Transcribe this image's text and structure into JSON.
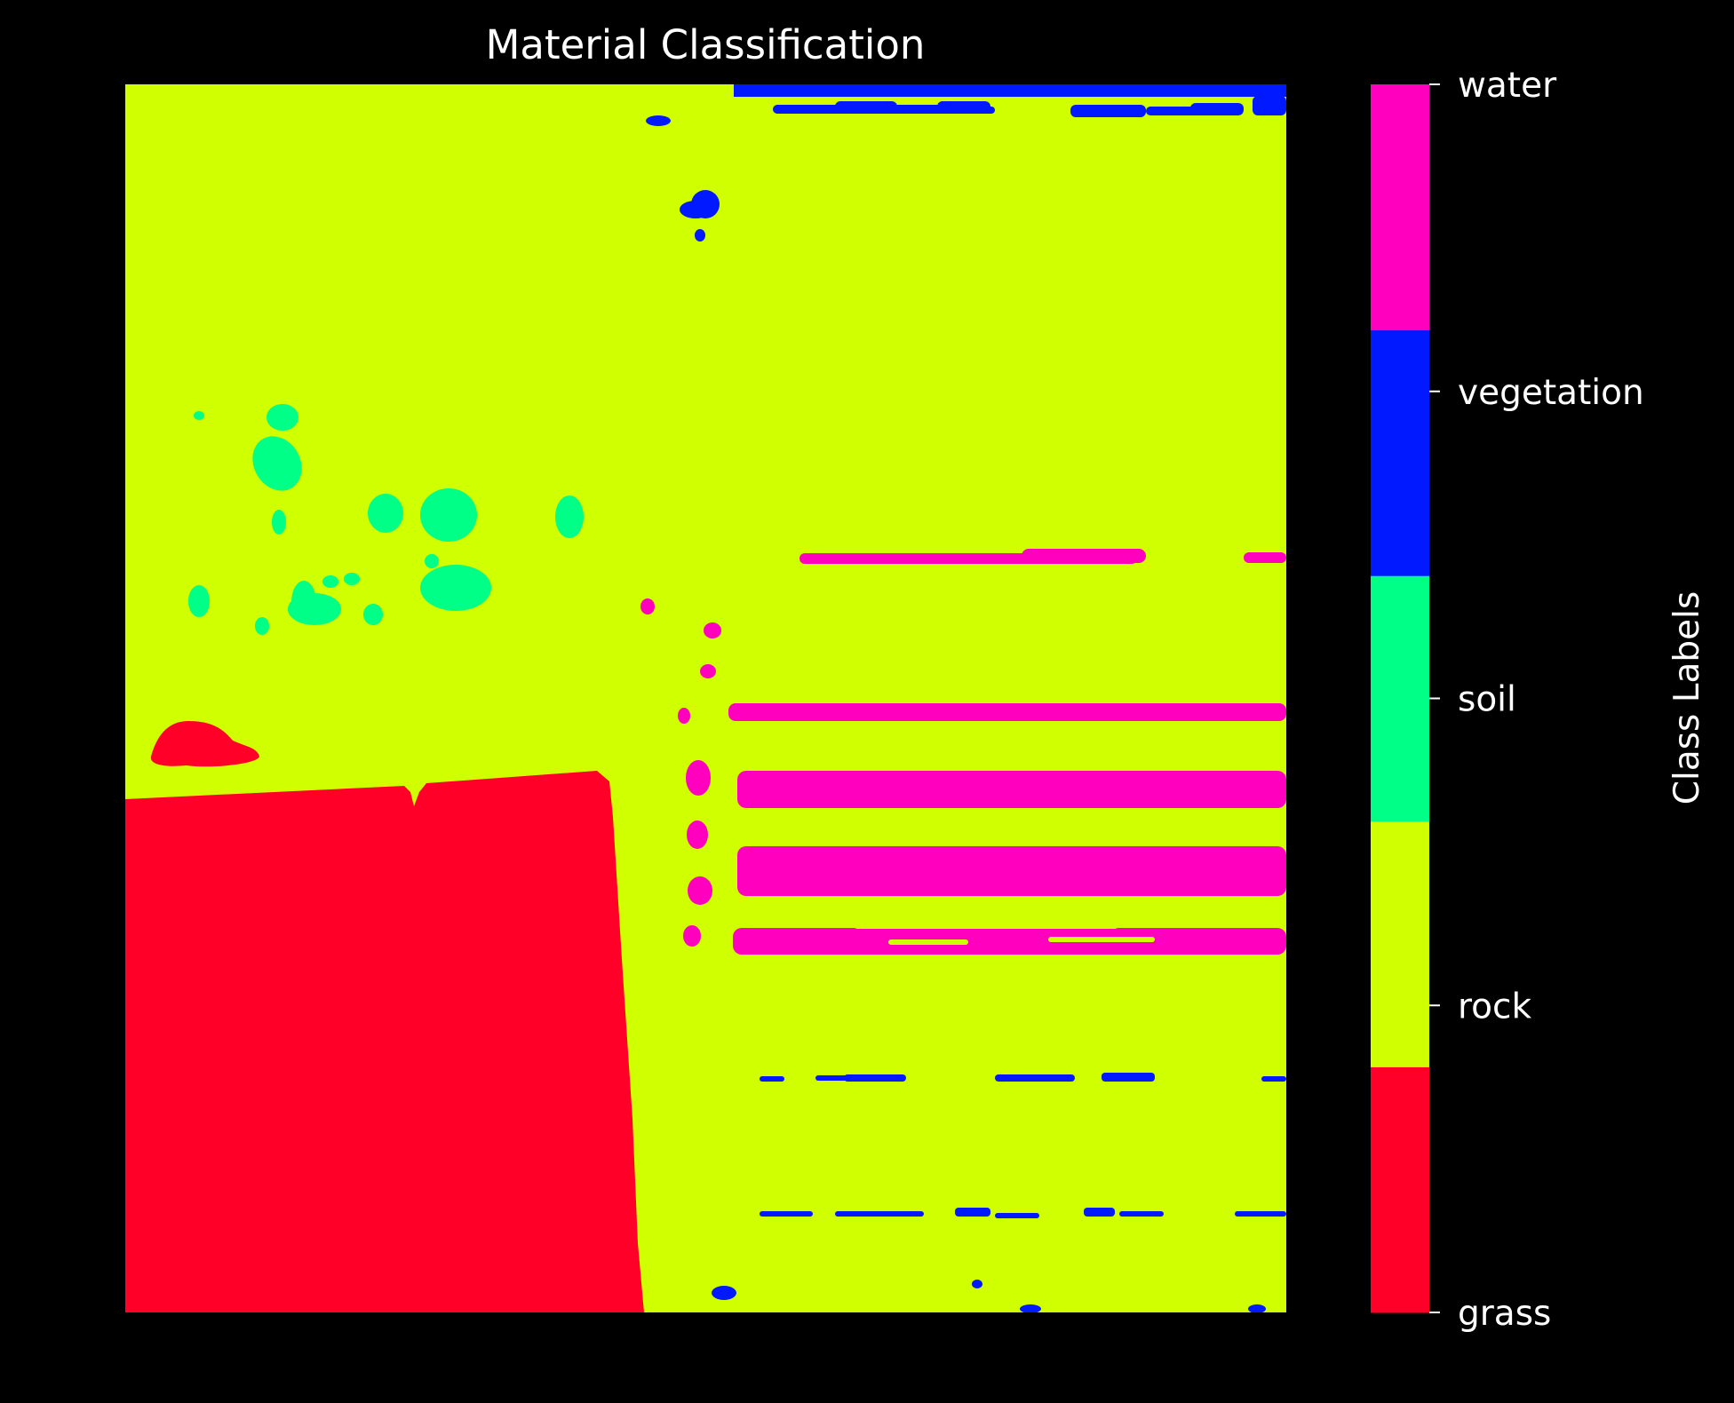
{
  "chart_data": {
    "type": "heatmap",
    "title": "Material Classification",
    "colorbar": {
      "label": "Class Labels",
      "classes": [
        {
          "name": "grass",
          "color": "#ff0028"
        },
        {
          "name": "rock",
          "color": "#cfff00"
        },
        {
          "name": "soil",
          "color": "#00ff86"
        },
        {
          "name": "vegetation",
          "color": "#0019ff"
        },
        {
          "name": "water",
          "color": "#ff00bf"
        }
      ]
    },
    "axes": "off",
    "background": "#000000"
  }
}
